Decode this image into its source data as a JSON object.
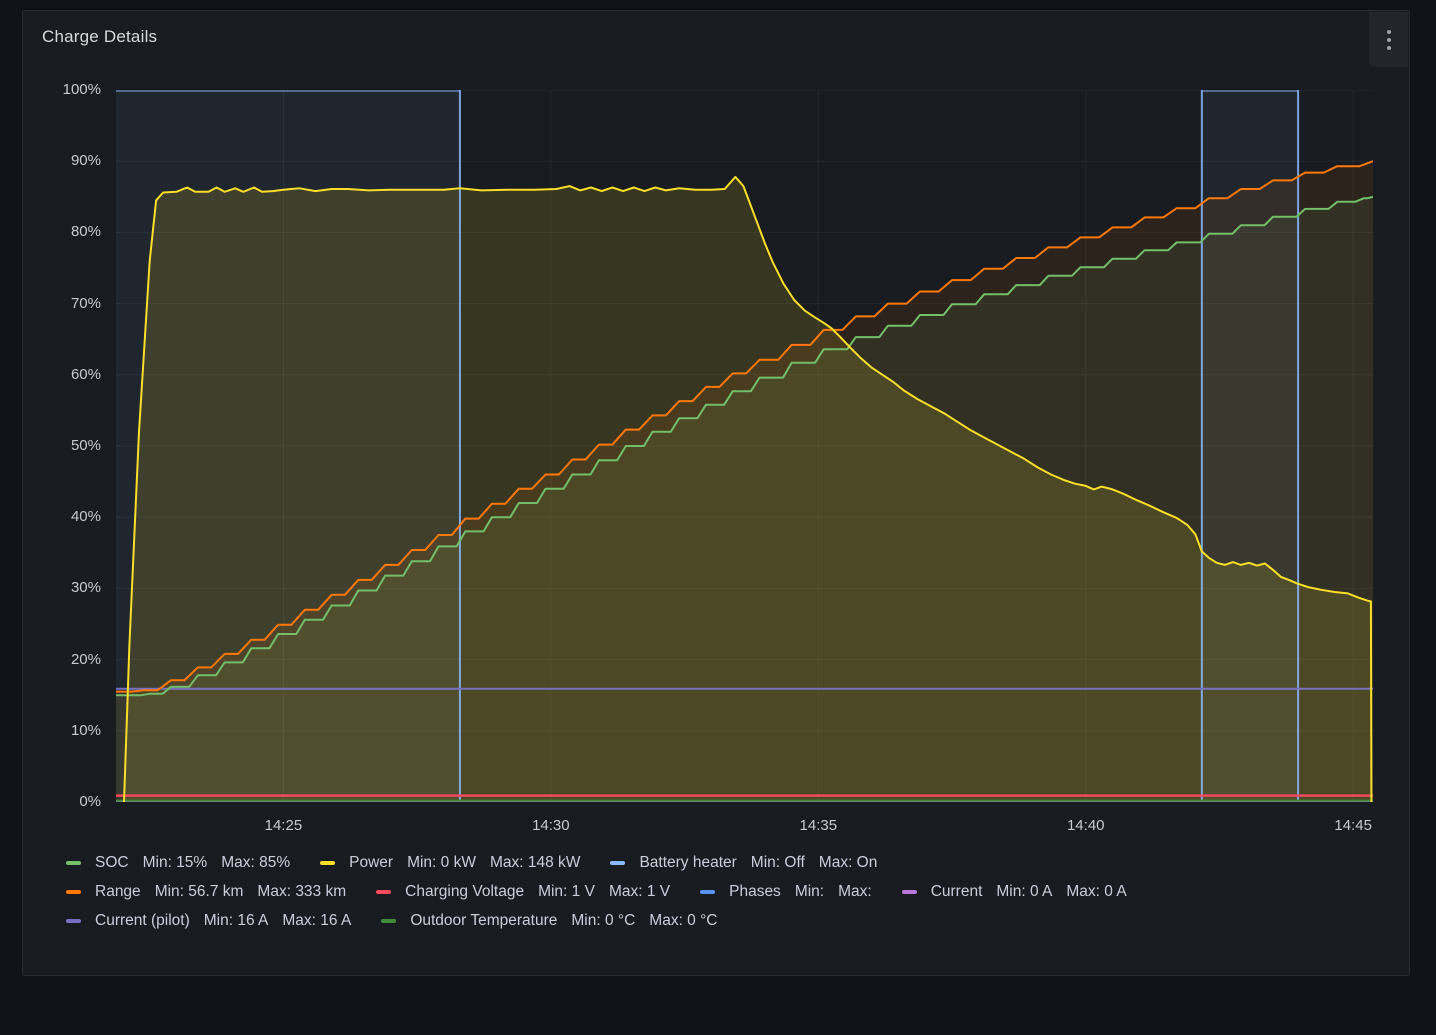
{
  "panel": {
    "title": "Charge Details",
    "kebab_icon": "kebab-menu"
  },
  "chart_data": {
    "type": "line",
    "title": "Charge Details",
    "x_axis": {
      "unit": "time",
      "tick_labels": [
        "14:25",
        "14:30",
        "14:35",
        "14:40",
        "14:45"
      ],
      "tick_minutes": [
        25,
        30,
        35,
        40,
        45
      ],
      "domain_minutes_after_1400": [
        21.87,
        45.37
      ],
      "grid": true
    },
    "y_axis": {
      "unit": "percent",
      "tick_labels": [
        "0%",
        "10%",
        "20%",
        "30%",
        "40%",
        "50%",
        "60%",
        "70%",
        "80%",
        "90%",
        "100%"
      ],
      "tick_values": [
        0,
        10,
        20,
        30,
        40,
        50,
        60,
        70,
        80,
        90,
        100
      ],
      "domain": [
        0,
        100
      ],
      "grid": true
    },
    "series": [
      {
        "name": "Battery heater",
        "color": "#8AB8FF",
        "kind": "bool-region",
        "min": "Off",
        "max": "On",
        "on_intervals_minutes": [
          [
            21.87,
            28.3
          ],
          [
            42.17,
            43.97
          ]
        ],
        "fill_opacity": 0.07,
        "line_width": 2
      },
      {
        "name": "Power",
        "color": "#FADE2A",
        "kind": "line",
        "unit": "kW",
        "min": "0 kW",
        "max": "148 kW",
        "fill_opacity": 0.14,
        "line_width": 2,
        "shoulder": 0,
        "points": [
          [
            22.02,
            0
          ],
          [
            22.12,
            22
          ],
          [
            22.3,
            52
          ],
          [
            22.5,
            76
          ],
          [
            22.62,
            84.5
          ],
          [
            22.75,
            85.6
          ],
          [
            23.0,
            85.7
          ],
          [
            23.2,
            86.3
          ],
          [
            23.35,
            85.7
          ],
          [
            23.6,
            85.7
          ],
          [
            23.75,
            86.3
          ],
          [
            23.9,
            85.7
          ],
          [
            24.1,
            86.2
          ],
          [
            24.25,
            85.7
          ],
          [
            24.45,
            86.3
          ],
          [
            24.6,
            85.7
          ],
          [
            24.8,
            85.8
          ],
          [
            25.0,
            86.0
          ],
          [
            25.3,
            86.2
          ],
          [
            25.6,
            85.8
          ],
          [
            25.9,
            86.1
          ],
          [
            26.2,
            86.1
          ],
          [
            26.6,
            85.9
          ],
          [
            27.0,
            86.0
          ],
          [
            27.5,
            86.0
          ],
          [
            28.0,
            86.0
          ],
          [
            28.3,
            86.2
          ],
          [
            28.7,
            85.9
          ],
          [
            29.2,
            86.0
          ],
          [
            29.7,
            86.0
          ],
          [
            30.1,
            86.1
          ],
          [
            30.35,
            86.5
          ],
          [
            30.55,
            85.9
          ],
          [
            30.75,
            86.3
          ],
          [
            30.95,
            85.8
          ],
          [
            31.15,
            86.3
          ],
          [
            31.35,
            85.8
          ],
          [
            31.55,
            86.3
          ],
          [
            31.75,
            85.8
          ],
          [
            31.95,
            86.3
          ],
          [
            32.15,
            85.9
          ],
          [
            32.4,
            86.2
          ],
          [
            32.7,
            86.0
          ],
          [
            33.0,
            86.0
          ],
          [
            33.25,
            86.1
          ],
          [
            33.45,
            87.8
          ],
          [
            33.6,
            86.5
          ],
          [
            33.7,
            84.5
          ],
          [
            33.85,
            81.5
          ],
          [
            34.0,
            78.5
          ],
          [
            34.15,
            75.8
          ],
          [
            34.35,
            72.8
          ],
          [
            34.55,
            70.5
          ],
          [
            34.75,
            69.0
          ],
          [
            34.95,
            68.0
          ],
          [
            35.1,
            67.3
          ],
          [
            35.25,
            66.5
          ],
          [
            35.4,
            65.4
          ],
          [
            35.6,
            63.8
          ],
          [
            35.8,
            62.3
          ],
          [
            36.0,
            61.0
          ],
          [
            36.2,
            60.0
          ],
          [
            36.4,
            59.0
          ],
          [
            36.6,
            57.8
          ],
          [
            36.85,
            56.6
          ],
          [
            37.1,
            55.6
          ],
          [
            37.35,
            54.6
          ],
          [
            37.6,
            53.4
          ],
          [
            37.85,
            52.2
          ],
          [
            38.1,
            51.2
          ],
          [
            38.35,
            50.2
          ],
          [
            38.6,
            49.2
          ],
          [
            38.85,
            48.2
          ],
          [
            39.1,
            47.0
          ],
          [
            39.35,
            46.0
          ],
          [
            39.6,
            45.2
          ],
          [
            39.8,
            44.7
          ],
          [
            40.0,
            44.4
          ],
          [
            40.15,
            43.9
          ],
          [
            40.3,
            44.3
          ],
          [
            40.5,
            43.9
          ],
          [
            40.7,
            43.3
          ],
          [
            40.95,
            42.4
          ],
          [
            41.2,
            41.6
          ],
          [
            41.45,
            40.7
          ],
          [
            41.7,
            39.9
          ],
          [
            41.9,
            38.9
          ],
          [
            42.05,
            37.6
          ],
          [
            42.17,
            35.2
          ],
          [
            42.3,
            34.3
          ],
          [
            42.45,
            33.6
          ],
          [
            42.6,
            33.3
          ],
          [
            42.75,
            33.7
          ],
          [
            42.9,
            33.3
          ],
          [
            43.05,
            33.6
          ],
          [
            43.2,
            33.2
          ],
          [
            43.35,
            33.5
          ],
          [
            43.5,
            32.6
          ],
          [
            43.65,
            31.6
          ],
          [
            43.8,
            31.2
          ],
          [
            43.95,
            30.7
          ],
          [
            44.15,
            30.2
          ],
          [
            44.4,
            29.8
          ],
          [
            44.65,
            29.5
          ],
          [
            44.9,
            29.3
          ],
          [
            45.1,
            28.7
          ],
          [
            45.3,
            28.2
          ],
          [
            45.33,
            28.2
          ],
          [
            45.34,
            0
          ]
        ]
      },
      {
        "name": "Range",
        "color": "#FF780A",
        "kind": "line",
        "unit": "km",
        "min": "56.7 km",
        "max": "333 km",
        "fill_opacity": 0.09,
        "line_width": 2,
        "shoulder": 0.25,
        "points": [
          [
            21.87,
            15.5
          ],
          [
            22.4,
            15.7
          ],
          [
            22.9,
            17.1
          ],
          [
            23.4,
            18.9
          ],
          [
            23.9,
            20.8
          ],
          [
            24.4,
            22.8
          ],
          [
            24.9,
            24.9
          ],
          [
            25.4,
            27.0
          ],
          [
            25.9,
            29.1
          ],
          [
            26.4,
            31.2
          ],
          [
            26.9,
            33.3
          ],
          [
            27.4,
            35.4
          ],
          [
            27.9,
            37.5
          ],
          [
            28.4,
            39.8
          ],
          [
            28.9,
            41.9
          ],
          [
            29.4,
            44.0
          ],
          [
            29.9,
            46.0
          ],
          [
            30.4,
            48.1
          ],
          [
            30.9,
            50.2
          ],
          [
            31.4,
            52.3
          ],
          [
            31.9,
            54.3
          ],
          [
            32.4,
            56.3
          ],
          [
            32.9,
            58.3
          ],
          [
            33.4,
            60.2
          ],
          [
            33.9,
            62.1
          ],
          [
            34.5,
            64.2
          ],
          [
            35.1,
            66.3
          ],
          [
            35.7,
            68.2
          ],
          [
            36.3,
            70.0
          ],
          [
            36.9,
            71.7
          ],
          [
            37.5,
            73.3
          ],
          [
            38.1,
            74.9
          ],
          [
            38.7,
            76.4
          ],
          [
            39.3,
            77.9
          ],
          [
            39.9,
            79.3
          ],
          [
            40.5,
            80.7
          ],
          [
            41.1,
            82.1
          ],
          [
            41.7,
            83.4
          ],
          [
            42.3,
            84.8
          ],
          [
            42.9,
            86.1
          ],
          [
            43.5,
            87.3
          ],
          [
            44.1,
            88.4
          ],
          [
            44.7,
            89.3
          ],
          [
            45.37,
            90
          ]
        ]
      },
      {
        "name": "SOC",
        "color": "#73BF69",
        "kind": "line",
        "unit": "%",
        "min": "15%",
        "max": "85%",
        "fill_opacity": 0.09,
        "line_width": 2,
        "shoulder": 0.16,
        "points": [
          [
            21.87,
            15
          ],
          [
            22.5,
            15.2
          ],
          [
            22.9,
            16.2
          ],
          [
            23.4,
            17.8
          ],
          [
            23.9,
            19.6
          ],
          [
            24.4,
            21.6
          ],
          [
            24.9,
            23.6
          ],
          [
            25.4,
            25.6
          ],
          [
            25.9,
            27.6
          ],
          [
            26.4,
            29.7
          ],
          [
            26.9,
            31.8
          ],
          [
            27.4,
            33.8
          ],
          [
            27.9,
            35.9
          ],
          [
            28.4,
            38.0
          ],
          [
            28.9,
            40.0
          ],
          [
            29.4,
            42.0
          ],
          [
            29.9,
            44.0
          ],
          [
            30.4,
            46.0
          ],
          [
            30.9,
            48.0
          ],
          [
            31.4,
            50.0
          ],
          [
            31.9,
            52.0
          ],
          [
            32.4,
            53.9
          ],
          [
            32.9,
            55.8
          ],
          [
            33.4,
            57.7
          ],
          [
            33.9,
            59.6
          ],
          [
            34.5,
            61.7
          ],
          [
            35.1,
            63.6
          ],
          [
            35.7,
            65.3
          ],
          [
            36.3,
            66.9
          ],
          [
            36.9,
            68.4
          ],
          [
            37.5,
            69.9
          ],
          [
            38.1,
            71.3
          ],
          [
            38.7,
            72.6
          ],
          [
            39.3,
            73.9
          ],
          [
            39.9,
            75.1
          ],
          [
            40.5,
            76.3
          ],
          [
            41.1,
            77.5
          ],
          [
            41.7,
            78.6
          ],
          [
            42.3,
            79.8
          ],
          [
            42.9,
            81.0
          ],
          [
            43.5,
            82.2
          ],
          [
            44.1,
            83.3
          ],
          [
            44.7,
            84.3
          ],
          [
            45.2,
            84.8
          ],
          [
            45.37,
            85
          ]
        ]
      },
      {
        "name": "Charging Voltage",
        "color": "#F2495C",
        "kind": "line",
        "unit": "V",
        "min": "1 V",
        "max": "1 V",
        "fill_opacity": 0,
        "line_width": 2.5,
        "shoulder": 0,
        "points": [
          [
            21.87,
            0.9
          ],
          [
            45.37,
            0.9
          ]
        ]
      },
      {
        "name": "Phases",
        "color": "#5794F2",
        "kind": "line",
        "unit": "",
        "min": "",
        "max": "",
        "fill_opacity": 0,
        "line_width": 2,
        "shoulder": 0,
        "points": []
      },
      {
        "name": "Current",
        "color": "#B877D9",
        "kind": "line",
        "unit": "A",
        "min": "0 A",
        "max": "0 A",
        "fill_opacity": 0,
        "line_width": 2,
        "shoulder": 0,
        "points": [
          [
            21.87,
            0.05
          ],
          [
            45.37,
            0.05
          ]
        ]
      },
      {
        "name": "Current (pilot)",
        "color": "#7870C0",
        "kind": "line",
        "unit": "A",
        "min": "16 A",
        "max": "16 A",
        "fill_opacity": 0,
        "line_width": 2,
        "shoulder": 0,
        "points": [
          [
            21.87,
            15.9
          ],
          [
            45.37,
            15.9
          ]
        ]
      },
      {
        "name": "Outdoor Temperature",
        "color": "#418A37",
        "kind": "line",
        "unit": "°C",
        "min": "0 °C",
        "max": "0 °C",
        "fill_opacity": 0,
        "line_width": 2,
        "shoulder": 0,
        "points": [
          [
            21.87,
            0.2
          ],
          [
            45.37,
            0.2
          ]
        ]
      }
    ],
    "legend": {
      "position": "bottom",
      "min_prefix": "Min:",
      "max_prefix": "Max:",
      "rows": [
        [
          {
            "label": "SOC",
            "color": "#73BF69",
            "min": "15%",
            "max": "85%"
          },
          {
            "label": "Power",
            "color": "#FADE2A",
            "min": "0 kW",
            "max": "148 kW"
          },
          {
            "label": "Battery heater",
            "color": "#8AB8FF",
            "min": "Off",
            "max": "On"
          }
        ],
        [
          {
            "label": "Range",
            "color": "#FF780A",
            "min": "56.7 km",
            "max": "333 km"
          },
          {
            "label": "Charging Voltage",
            "color": "#F2495C",
            "min": "1 V",
            "max": "1 V"
          },
          {
            "label": "Phases",
            "color": "#5794F2",
            "min": "",
            "max": ""
          },
          {
            "label": "Current",
            "color": "#B877D9",
            "min": "0 A",
            "max": "0 A"
          }
        ],
        [
          {
            "label": "Current (pilot)",
            "color": "#7870C0",
            "min": "16 A",
            "max": "16 A"
          },
          {
            "label": "Outdoor Temperature",
            "color": "#418A37",
            "min": "0 °C",
            "max": "0 °C"
          }
        ]
      ]
    },
    "grid_color": "rgba(204,204,220,0.07)"
  }
}
